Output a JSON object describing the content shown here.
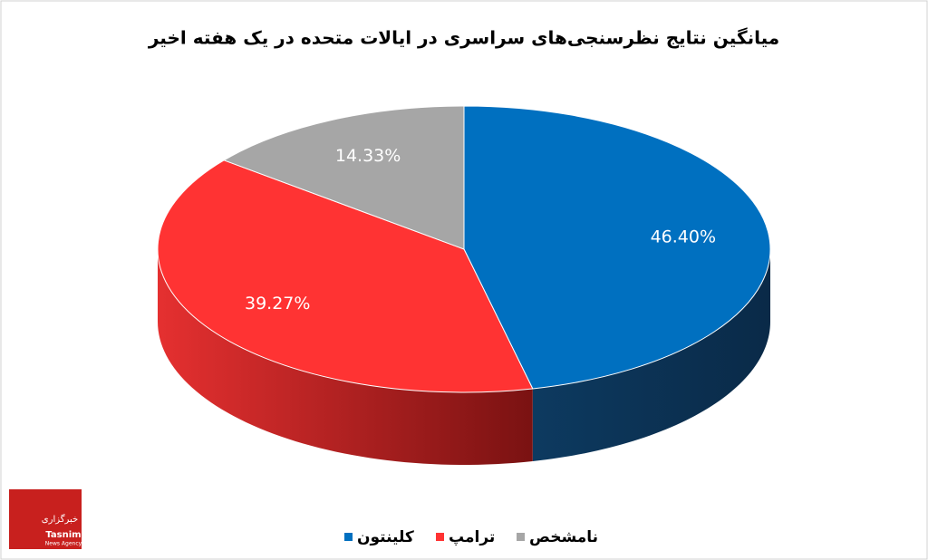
{
  "chart_data": {
    "type": "pie3d",
    "title": "میانگین نتایج نظرسنجی‌های سراسری در ایالات متحده در یک هفته اخیر",
    "categories": [
      "کلینتون",
      "ترامپ",
      "نامشخص"
    ],
    "values": [
      46.4,
      39.27,
      14.33
    ],
    "value_labels": [
      "46.40%",
      "39.27%",
      "14.33%"
    ],
    "colors": [
      "#0070c0",
      "#ff3333",
      "#a6a6a6"
    ],
    "legend": "bottom"
  },
  "logo": {
    "name": "Tasnim",
    "tagline": "News Agency",
    "label": "خبرگزاری"
  }
}
